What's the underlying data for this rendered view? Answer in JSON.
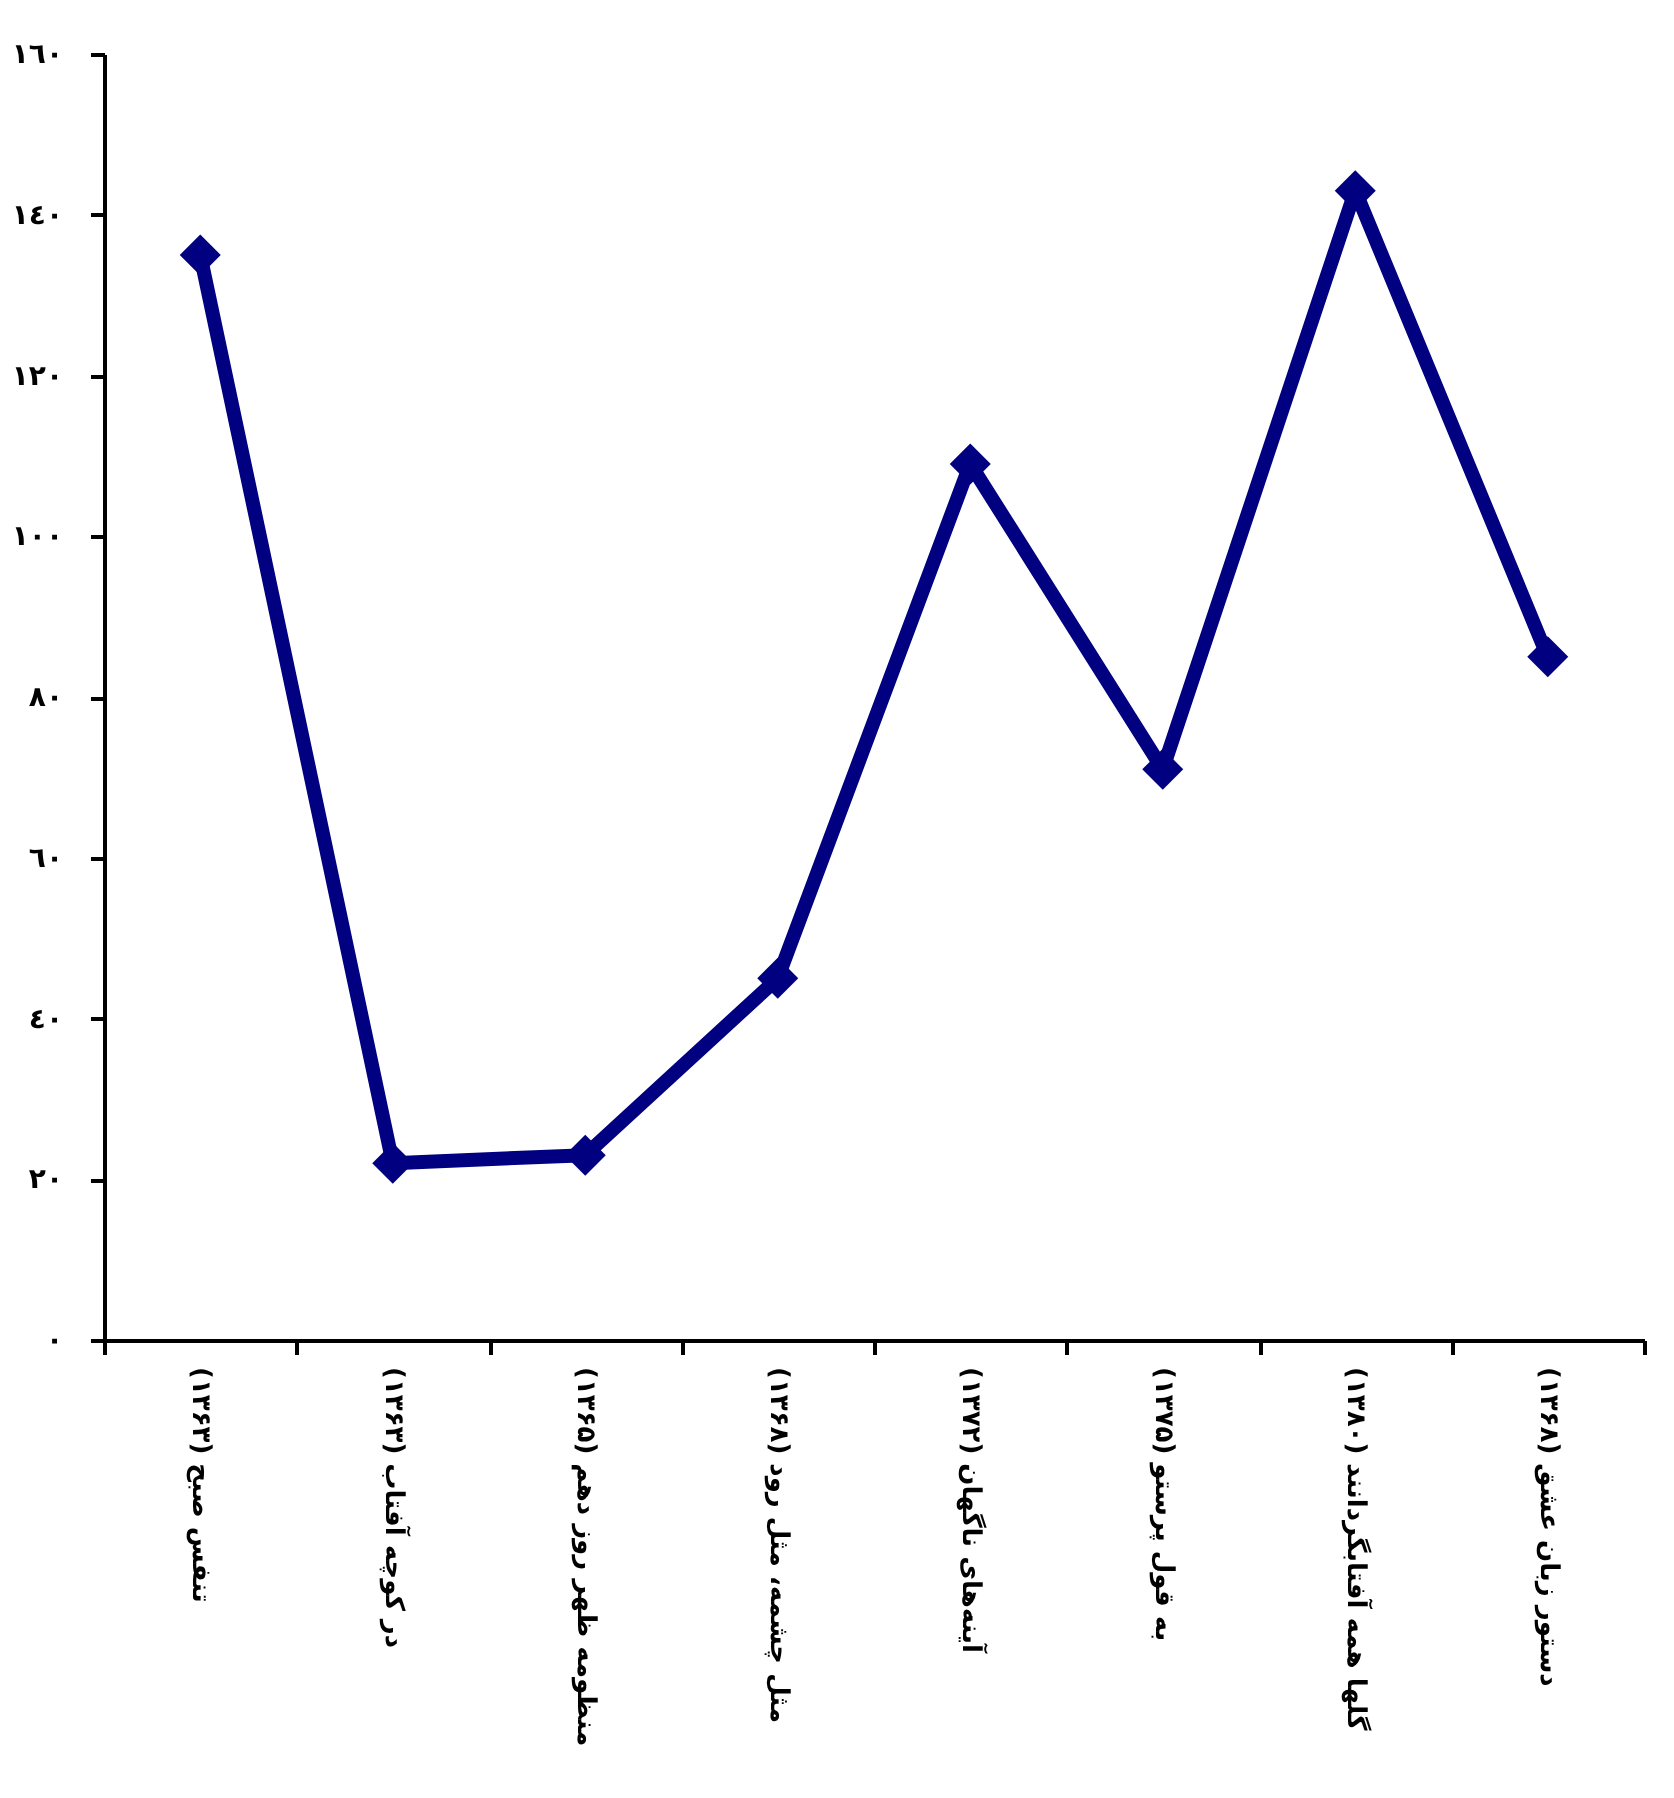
{
  "chart_data": {
    "type": "line",
    "categories": [
      "تنفس صبح (۱۳۶۳)",
      "در کوچه آفتاب (۱۳۶۳)",
      "منظومه ظهر روز دهم (۱۳۶۵)",
      "مثل چشمه، مثل رود (۱۳۶۸)",
      "آینه‌های ناگهان (۱۳۷۲)",
      "به قول پرستو (۱۳۷۵)",
      "گلها همه آفتابگردانند (۱۳۸۰)",
      "دستور زبان عشق (۱۳۶۸)"
    ],
    "series": [
      {
        "color": "#000080",
        "values": [
          135,
          22,
          23,
          45,
          109,
          71,
          143,
          85
        ]
      }
    ],
    "ylim": [
      0,
      160
    ],
    "yticks": [
      {
        "value": 0,
        "label": "٠"
      },
      {
        "value": 20,
        "label": "٢٠"
      },
      {
        "value": 40,
        "label": "٤٠"
      },
      {
        "value": 60,
        "label": "٦٠"
      },
      {
        "value": 80,
        "label": "٨٠"
      },
      {
        "value": 100,
        "label": "١٠٠"
      },
      {
        "value": 120,
        "label": "١٢٠"
      },
      {
        "value": 140,
        "label": "١٤٠"
      },
      {
        "value": 160,
        "label": "١٦٠"
      }
    ],
    "grid": false,
    "legend": false,
    "marker": "diamond",
    "line_style": "solid"
  }
}
